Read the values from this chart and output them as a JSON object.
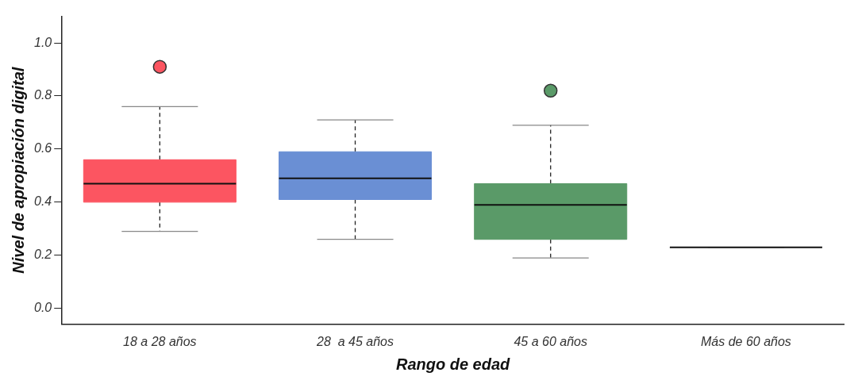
{
  "chart_data": {
    "type": "box",
    "xlabel": "Rango de edad",
    "ylabel": "Nivel de apropiación digital",
    "categories": [
      "18 a 28 años",
      "28  a 45 años",
      "45 a 60 años",
      "Más de 60 años"
    ],
    "colors": [
      "#fc5561",
      "#6a8fd4",
      "#5a9a68",
      "#ffffff"
    ],
    "boxes": [
      {
        "low": 0.29,
        "q1": 0.4,
        "median": 0.47,
        "q3": 0.56,
        "high": 0.76,
        "outliers": [
          0.91
        ]
      },
      {
        "low": 0.26,
        "q1": 0.41,
        "median": 0.49,
        "q3": 0.59,
        "high": 0.71
      },
      {
        "low": 0.19,
        "q1": 0.26,
        "median": 0.39,
        "q3": 0.47,
        "high": 0.69,
        "outliers": [
          0.82
        ]
      },
      {
        "low": 0.23,
        "q1": 0.23,
        "median": 0.23,
        "q3": 0.23,
        "high": 0.23
      }
    ],
    "ylim": [
      -0.06,
      1.1
    ],
    "yticks": [
      {
        "value": 0,
        "label": "0.0"
      },
      {
        "value": 0.2,
        "label": "0.2"
      },
      {
        "value": 0.4,
        "label": "0.4"
      },
      {
        "value": 0.6,
        "label": "0.6"
      },
      {
        "value": 0.8,
        "label": "0.8"
      },
      {
        "value": 1,
        "label": "1.0"
      }
    ],
    "grid": false,
    "legend": false
  }
}
